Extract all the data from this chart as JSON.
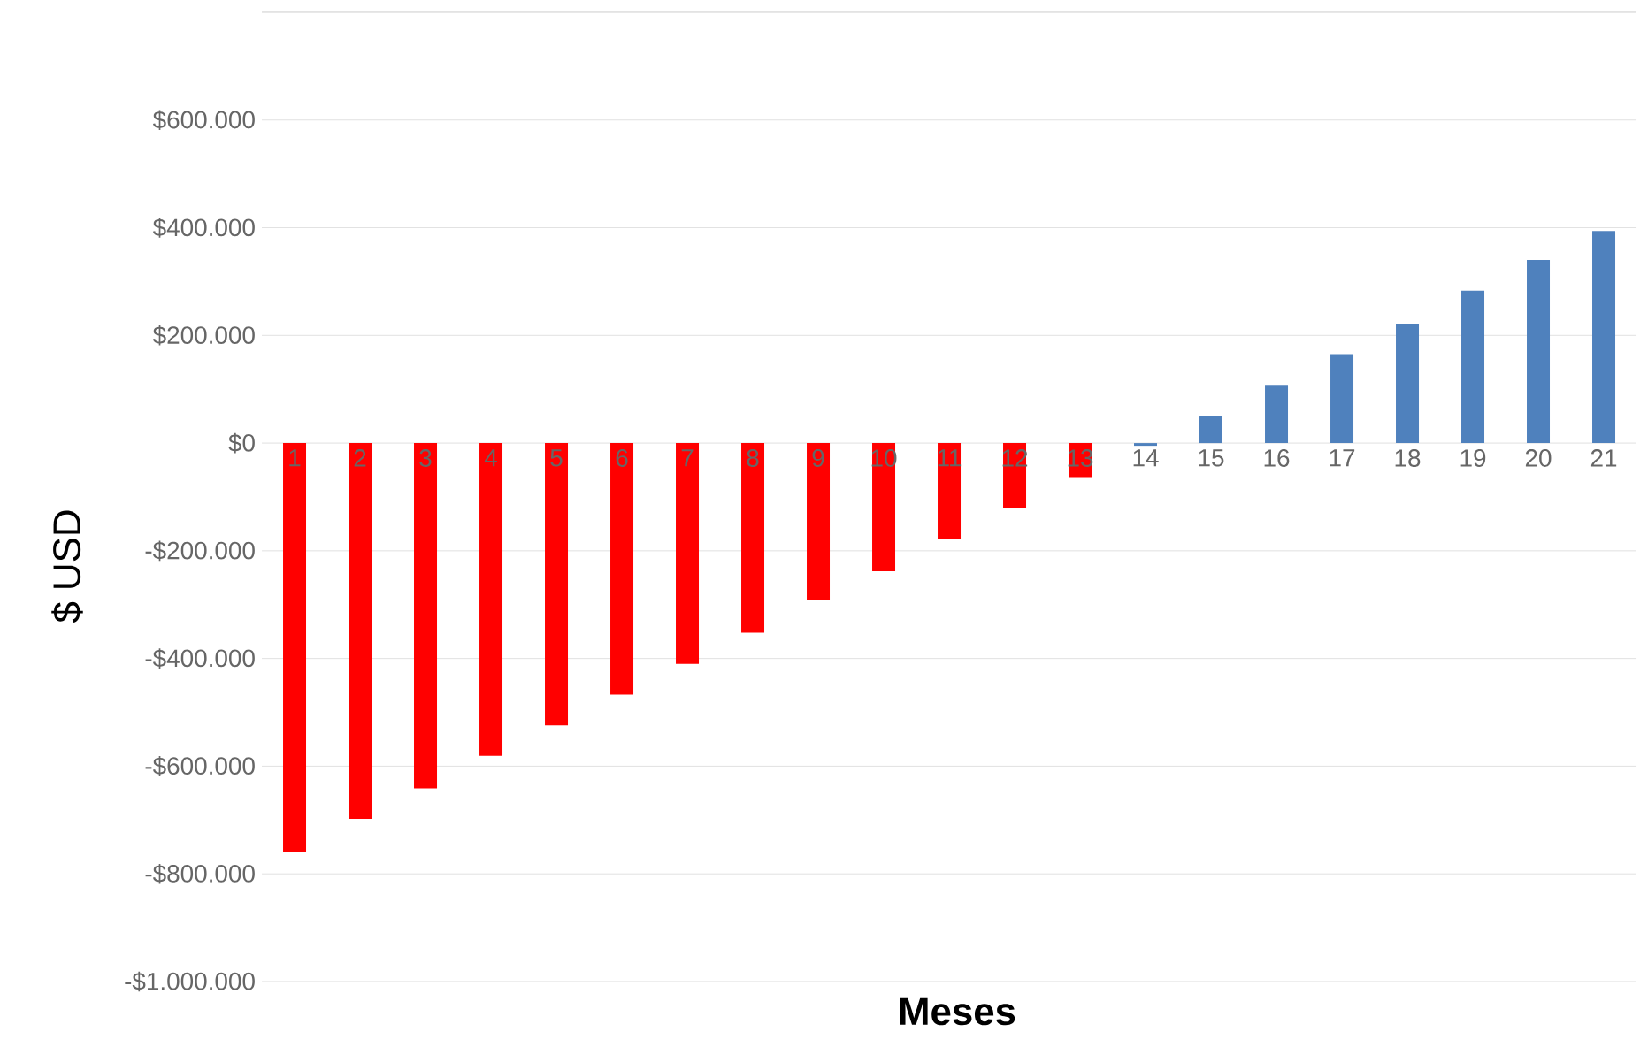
{
  "chart_data": {
    "type": "bar",
    "xlabel": "Meses",
    "ylabel": "$ USD",
    "categories": [
      "1",
      "2",
      "3",
      "4",
      "5",
      "6",
      "7",
      "8",
      "9",
      "10",
      "11",
      "12",
      "13",
      "14",
      "15",
      "16",
      "17",
      "18",
      "19",
      "20",
      "21"
    ],
    "values": [
      -760000,
      -698000,
      -641000,
      -581000,
      -524000,
      -467000,
      -410000,
      -352000,
      -292000,
      -238000,
      -178000,
      -121000,
      -63000,
      -5000,
      51000,
      108000,
      165000,
      222000,
      283000,
      340000,
      394000
    ],
    "colors": [
      "#ff0000",
      "#ff0000",
      "#ff0000",
      "#ff0000",
      "#ff0000",
      "#ff0000",
      "#ff0000",
      "#ff0000",
      "#ff0000",
      "#ff0000",
      "#ff0000",
      "#ff0000",
      "#ff0000",
      "#4f81bd",
      "#4f81bd",
      "#4f81bd",
      "#4f81bd",
      "#4f81bd",
      "#4f81bd",
      "#4f81bd",
      "#4f81bd"
    ],
    "ylim": [
      -1000000,
      800000
    ],
    "yticks": [
      {
        "value": -1000000,
        "label": "-$1.000.000"
      },
      {
        "value": -800000,
        "label": "-$800.000"
      },
      {
        "value": -600000,
        "label": "-$600.000"
      },
      {
        "value": -400000,
        "label": "-$400.000"
      },
      {
        "value": -200000,
        "label": "-$200.000"
      },
      {
        "value": 0,
        "label": "$0"
      },
      {
        "value": 200000,
        "label": "$200.000"
      },
      {
        "value": 400000,
        "label": "$400.000"
      },
      {
        "value": 600000,
        "label": "$600.000"
      }
    ],
    "grid": "y"
  }
}
